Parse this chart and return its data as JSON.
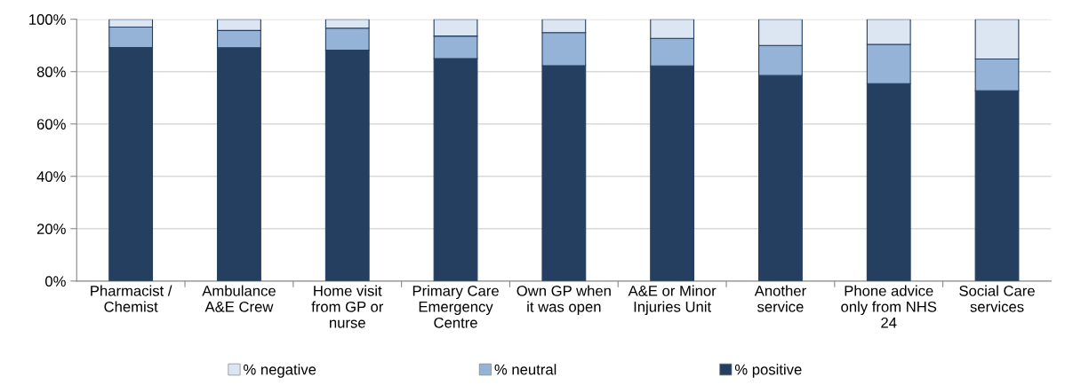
{
  "chart_data": {
    "type": "bar",
    "stacked": true,
    "categories": [
      "Pharmacist /\nChemist",
      "Ambulance\nA&E Crew",
      "Home visit\nfrom GP or\nnurse",
      "Primary Care\nEmergency\nCentre",
      "Own GP when\nit was open",
      "A&E or Minor\nInjuries Unit",
      "Another\nservice",
      "Phone advice\nonly from NHS\n24",
      "Social Care\nservices"
    ],
    "series": [
      {
        "name": "% positive",
        "color": "#253f60",
        "values": [
          89.2,
          89.1,
          88.2,
          85.0,
          82.3,
          82.2,
          78.5,
          75.4,
          72.7
        ]
      },
      {
        "name": "% neutral",
        "color": "#95b3d7",
        "values": [
          7.8,
          6.6,
          8.4,
          8.6,
          12.6,
          10.5,
          11.5,
          15.0,
          12.1
        ]
      },
      {
        "name": "% negative",
        "color": "#dce6f2",
        "values": [
          3.0,
          4.3,
          3.4,
          6.4,
          5.1,
          7.3,
          10.0,
          9.6,
          15.2
        ]
      }
    ],
    "ylim": [
      0,
      100
    ],
    "yticks": [
      {
        "value": 0,
        "label": "0%"
      },
      {
        "value": 20,
        "label": "20%"
      },
      {
        "value": 40,
        "label": "40%"
      },
      {
        "value": 60,
        "label": "60%"
      },
      {
        "value": 80,
        "label": "80%"
      },
      {
        "value": 100,
        "label": "100%"
      }
    ],
    "grid": "y",
    "legend": "bottom"
  }
}
